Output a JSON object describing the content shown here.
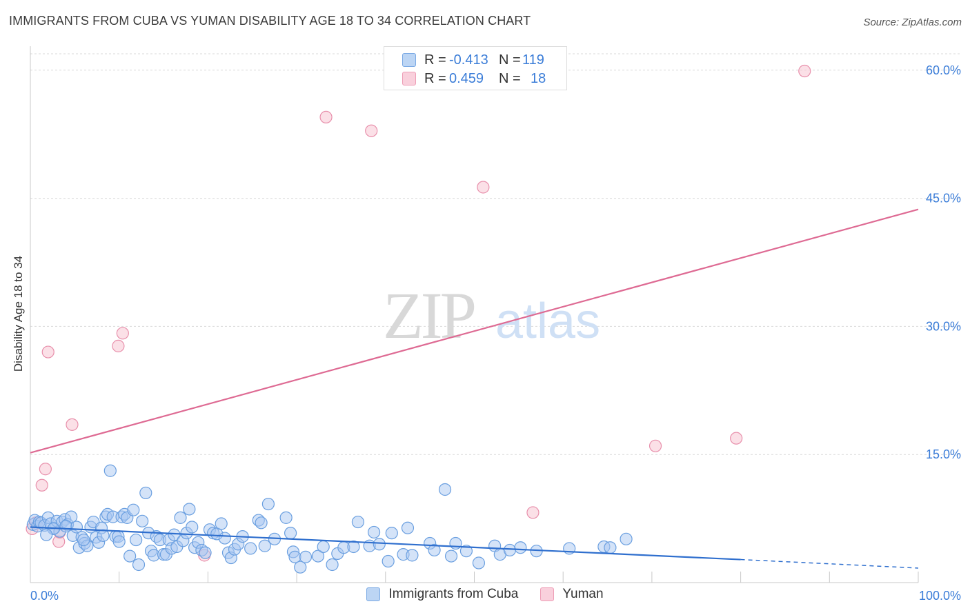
{
  "header": {
    "title": "IMMIGRANTS FROM CUBA VS YUMAN DISABILITY AGE 18 TO 34 CORRELATION CHART",
    "source": "Source: ZipAtlas.com"
  },
  "legend_top": {
    "rows": [
      {
        "r_label": "R =",
        "r_value": "-0.413",
        "n_label": "N =",
        "n_value": "119"
      },
      {
        "r_label": "R =",
        "r_value": "0.459",
        "n_label": "N =",
        "n_value": "18"
      }
    ]
  },
  "legend_bottom": {
    "items": [
      {
        "label": "Immigrants from Cuba"
      },
      {
        "label": "Yuman"
      }
    ]
  },
  "colors": {
    "cuba_fill": "#a9c8f1",
    "cuba_stroke": "#6a9fe0",
    "cuba_line": "#2f6fce",
    "yuman_fill": "#f7c6d4",
    "yuman_stroke": "#e88fab",
    "yuman_line": "#de6a93",
    "axis_text": "#3b7dd8",
    "grid": "#d9d9d9"
  },
  "chart_data": {
    "type": "scatter",
    "title": "IMMIGRANTS FROM CUBA VS YUMAN DISABILITY AGE 18 TO 34 CORRELATION CHART",
    "xlabel": "",
    "ylabel": "Disability Age 18 to 34",
    "xlim": [
      0,
      100
    ],
    "ylim": [
      0,
      62
    ],
    "x_tick_labels": [
      {
        "value": 0,
        "label": "0.0%"
      },
      {
        "value": 100,
        "label": "100.0%"
      }
    ],
    "y_tick_labels": [
      {
        "value": 15,
        "label": "15.0%"
      },
      {
        "value": 30,
        "label": "30.0%"
      },
      {
        "value": 45,
        "label": "45.0%"
      },
      {
        "value": 60,
        "label": "60.0%"
      }
    ],
    "watermark": {
      "zip": "ZIP",
      "atlas": "atlas"
    },
    "series": [
      {
        "name": "Immigrants from Cuba",
        "trend": {
          "x0": 0,
          "y0": 6.5,
          "x1": 80,
          "y1": 2.7,
          "dashed_to_x": 100,
          "dashed_to_y": 1.7
        },
        "points": [
          [
            0.3,
            6.8
          ],
          [
            0.5,
            7.3
          ],
          [
            0.8,
            6.6
          ],
          [
            1.0,
            7.1
          ],
          [
            1.2,
            7.0
          ],
          [
            1.6,
            6.7
          ],
          [
            2.0,
            7.6
          ],
          [
            2.3,
            6.9
          ],
          [
            2.7,
            6.4
          ],
          [
            3.0,
            7.2
          ],
          [
            3.3,
            6.0
          ],
          [
            3.6,
            7.1
          ],
          [
            3.9,
            7.4
          ],
          [
            4.2,
            6.8
          ],
          [
            4.6,
            7.7
          ],
          [
            4.8,
            5.5
          ],
          [
            5.2,
            6.5
          ],
          [
            5.5,
            4.1
          ],
          [
            5.8,
            5.3
          ],
          [
            6.1,
            4.6
          ],
          [
            6.4,
            4.3
          ],
          [
            6.8,
            6.5
          ],
          [
            7.1,
            7.1
          ],
          [
            7.4,
            5.3
          ],
          [
            7.7,
            4.7
          ],
          [
            8.0,
            6.4
          ],
          [
            8.2,
            5.5
          ],
          [
            8.5,
            7.7
          ],
          [
            8.7,
            8.0
          ],
          [
            9.0,
            13.1
          ],
          [
            9.3,
            7.7
          ],
          [
            9.6,
            5.4
          ],
          [
            9.9,
            5.4
          ],
          [
            10.3,
            7.7
          ],
          [
            10.6,
            8.0
          ],
          [
            10.9,
            7.6
          ],
          [
            11.2,
            3.1
          ],
          [
            11.6,
            8.5
          ],
          [
            11.9,
            5.0
          ],
          [
            12.2,
            2.1
          ],
          [
            12.6,
            7.2
          ],
          [
            13.0,
            10.5
          ],
          [
            13.3,
            5.8
          ],
          [
            13.6,
            3.7
          ],
          [
            13.9,
            3.2
          ],
          [
            14.2,
            5.4
          ],
          [
            14.6,
            5.0
          ],
          [
            15.0,
            3.3
          ],
          [
            15.3,
            3.3
          ],
          [
            15.6,
            5.0
          ],
          [
            15.9,
            4.0
          ],
          [
            16.2,
            5.6
          ],
          [
            16.5,
            4.2
          ],
          [
            16.9,
            7.6
          ],
          [
            17.2,
            4.9
          ],
          [
            17.6,
            5.8
          ],
          [
            17.9,
            8.6
          ],
          [
            18.2,
            6.5
          ],
          [
            18.5,
            4.1
          ],
          [
            18.9,
            4.7
          ],
          [
            19.3,
            3.8
          ],
          [
            19.7,
            3.5
          ],
          [
            20.2,
            6.2
          ],
          [
            20.6,
            5.8
          ],
          [
            21.0,
            5.7
          ],
          [
            21.5,
            6.9
          ],
          [
            21.9,
            5.2
          ],
          [
            22.3,
            3.5
          ],
          [
            22.6,
            2.9
          ],
          [
            23.0,
            3.9
          ],
          [
            23.4,
            4.5
          ],
          [
            23.9,
            5.4
          ],
          [
            25.7,
            7.3
          ],
          [
            26.0,
            7.0
          ],
          [
            26.4,
            4.3
          ],
          [
            26.8,
            9.2
          ],
          [
            28.8,
            7.6
          ],
          [
            29.3,
            5.8
          ],
          [
            29.6,
            3.6
          ],
          [
            29.8,
            3.0
          ],
          [
            30.4,
            1.8
          ],
          [
            31.0,
            3.0
          ],
          [
            32.4,
            3.1
          ],
          [
            33.0,
            4.2
          ],
          [
            34.0,
            2.1
          ],
          [
            34.6,
            3.4
          ],
          [
            35.3,
            4.1
          ],
          [
            36.4,
            4.2
          ],
          [
            36.9,
            7.1
          ],
          [
            38.2,
            4.3
          ],
          [
            38.7,
            5.9
          ],
          [
            39.3,
            4.5
          ],
          [
            40.3,
            2.5
          ],
          [
            40.7,
            5.8
          ],
          [
            42.0,
            3.3
          ],
          [
            42.5,
            6.4
          ],
          [
            43.0,
            3.2
          ],
          [
            45.0,
            4.6
          ],
          [
            45.5,
            3.8
          ],
          [
            46.7,
            10.9
          ],
          [
            47.4,
            3.1
          ],
          [
            47.9,
            4.6
          ],
          [
            49.1,
            3.7
          ],
          [
            50.5,
            2.3
          ],
          [
            52.3,
            4.3
          ],
          [
            52.9,
            3.3
          ],
          [
            54.0,
            3.8
          ],
          [
            55.2,
            4.1
          ],
          [
            57.0,
            3.7
          ],
          [
            60.7,
            4.0
          ],
          [
            64.6,
            4.2
          ],
          [
            65.3,
            4.1
          ],
          [
            67.1,
            5.1
          ],
          [
            4.0,
            6.6
          ],
          [
            2.6,
            6.3
          ],
          [
            1.8,
            5.6
          ],
          [
            6.0,
            5.0
          ],
          [
            10.0,
            4.8
          ],
          [
            24.8,
            4.0
          ],
          [
            27.5,
            5.1
          ]
        ]
      },
      {
        "name": "Yuman",
        "trend": {
          "x0": 0,
          "y0": 15.2,
          "x1": 100,
          "y1": 43.7
        },
        "points": [
          [
            0.6,
            7.0
          ],
          [
            1.3,
            11.4
          ],
          [
            1.7,
            13.3
          ],
          [
            2.0,
            27.0
          ],
          [
            3.2,
            4.8
          ],
          [
            3.3,
            5.9
          ],
          [
            4.7,
            18.5
          ],
          [
            9.9,
            27.7
          ],
          [
            10.4,
            29.2
          ],
          [
            33.3,
            54.5
          ],
          [
            38.4,
            52.9
          ],
          [
            51.0,
            46.3
          ],
          [
            56.6,
            8.2
          ],
          [
            70.4,
            16.0
          ],
          [
            79.5,
            16.9
          ],
          [
            87.2,
            59.9
          ],
          [
            19.6,
            3.2
          ],
          [
            0.2,
            6.3
          ]
        ]
      }
    ]
  }
}
